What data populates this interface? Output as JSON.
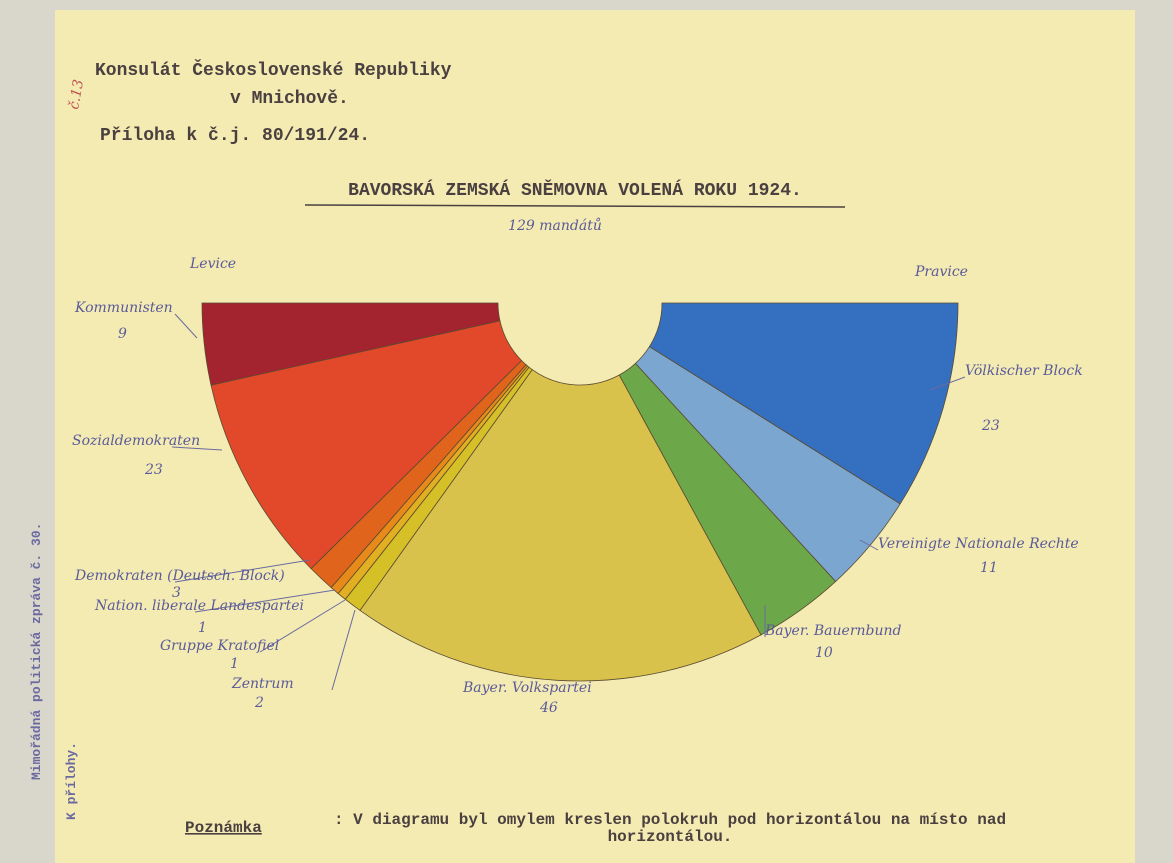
{
  "header": {
    "line1": "Konsulát Československé Republiky",
    "line2": "v Mnichově.",
    "line3": "Příloha k č.j. 80/191/24.",
    "margin_note": "č.13"
  },
  "side_note": {
    "line1": "Mimořádná politická zpráva č. 30.",
    "line2": "K přílohy."
  },
  "chart_data": {
    "type": "pie",
    "title": "BAVORSKÁ ZEMSKÁ SNĚMOVNA VOLENÁ ROKU 1924.",
    "subtitle": "129 mandátů",
    "left_label": "Levice",
    "right_label": "Pravice",
    "categories": [
      "Kommunisten",
      "Sozialdemokraten",
      "Demokraten (Deutsch. Block)",
      "Nation. liberale Landespartei",
      "Gruppe Kratofiel",
      "Zentrum",
      "Bayer. Volkspartei",
      "Bayer. Bauernbund",
      "Vereinigte Nationale Rechte",
      "Völkischer Block"
    ],
    "values": [
      9,
      23,
      3,
      1,
      1,
      2,
      46,
      10,
      11,
      23
    ],
    "colors": [
      "#a3232f",
      "#e2482a",
      "#e0641c",
      "#e88a1a",
      "#e2ae22",
      "#d6c028",
      "#d8c24c",
      "#6ca84a",
      "#7ba6cf",
      "#3470bf"
    ]
  },
  "note": {
    "label": "Poznámka",
    "text": ": V diagramu byl omylem kreslen polokruh pod horizontálou na místo nad horizontálou."
  }
}
